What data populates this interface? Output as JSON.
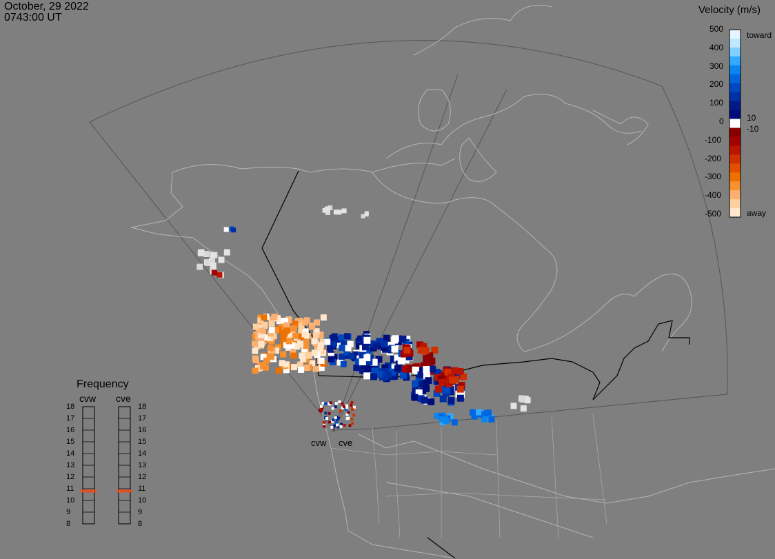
{
  "header": {
    "date": "October, 29 2022",
    "time": "0743:00 UT"
  },
  "colorbar": {
    "title": "Velocity (m/s)",
    "ticks": [
      "500",
      "400",
      "300",
      "200",
      "100",
      "0",
      "-100",
      "-200",
      "-300",
      "-400",
      "-500"
    ],
    "right_labels": {
      "top": "toward",
      "ten": "10",
      "neg_ten": "-10",
      "bottom": "away"
    },
    "colors_top_to_bottom": [
      "#e6f5ff",
      "#bfe8ff",
      "#80d0ff",
      "#33aaff",
      "#0a86ef",
      "#0066dd",
      "#0048c0",
      "#0030a5",
      "#001a8a",
      "#000d78",
      "#ffffff",
      "#8a0000",
      "#a30000",
      "#bb1500",
      "#d03000",
      "#e05000",
      "#ee7000",
      "#f79030",
      "#fbb070",
      "#fdd0a0",
      "#ffe6cc"
    ]
  },
  "frequency": {
    "title": "Frequency",
    "radars": [
      "cvw",
      "cve"
    ],
    "scale": [
      "18",
      "17",
      "16",
      "15",
      "14",
      "13",
      "12",
      "11",
      "10",
      "9",
      "8"
    ],
    "values_mhz": {
      "cvw": 10.8,
      "cve": 10.8
    },
    "marker_color": "#e05020"
  },
  "radar_labels": [
    "cvw",
    "cve"
  ],
  "colors": {
    "background": "#7f7f7f",
    "coast": "#bdbdbd",
    "border": "#000000",
    "fov": "#5a5a5a"
  }
}
